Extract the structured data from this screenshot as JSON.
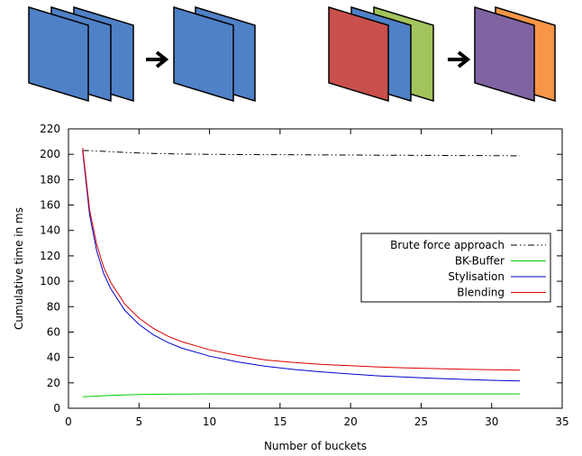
{
  "illustration": {
    "left_group_colors": [
      "#4f81c7",
      "#4f81c7",
      "#4f81c7"
    ],
    "left_result_colors": [
      "#4f81c7",
      "#4f81c7"
    ],
    "right_group_colors": [
      "#a3c45c",
      "#4f81c7",
      "#c9504c"
    ],
    "right_result_colors": [
      "#f79646",
      "#8064a2"
    ],
    "arrow_color": "#000000"
  },
  "chart_data": {
    "type": "line",
    "title": "",
    "xlabel": "Number of buckets",
    "ylabel": "Cumulative time in ms",
    "xlim": [
      0,
      35
    ],
    "ylim": [
      0,
      220
    ],
    "xticks": [
      0,
      5,
      10,
      15,
      20,
      25,
      30,
      35
    ],
    "yticks": [
      0,
      20,
      40,
      60,
      80,
      100,
      120,
      140,
      160,
      180,
      200,
      220
    ],
    "grid": false,
    "legend_position": "right",
    "x": [
      1,
      1.5,
      2,
      2.5,
      3,
      4,
      5,
      6,
      7,
      8,
      10,
      12,
      14,
      16,
      18,
      20,
      22,
      24,
      26,
      28,
      30,
      32
    ],
    "series": [
      {
        "name": "Brute force approach",
        "color": "#000000",
        "dash": "dash-dot-dot",
        "values": [
          203,
          202.8,
          202.5,
          202.3,
          202,
          201.5,
          201,
          200.7,
          200.4,
          200.2,
          200,
          199.8,
          199.7,
          199.6,
          199.5,
          199.4,
          199.3,
          199.2,
          199.1,
          199,
          198.9,
          198.8
        ]
      },
      {
        "name": "BK-Buffer",
        "color": "#00cc00",
        "dash": "solid",
        "values": [
          9,
          9.3,
          9.6,
          9.9,
          10.1,
          10.5,
          10.8,
          11,
          11.1,
          11.2,
          11.3,
          11.3,
          11.3,
          11.3,
          11.3,
          11.3,
          11.3,
          11.3,
          11.3,
          11.3,
          11.3,
          11.3
        ]
      },
      {
        "name": "Stylisation",
        "color": "#0000cc",
        "dash": "solid",
        "values": [
          203,
          152,
          124,
          106,
          94,
          77,
          66,
          58,
          52,
          47.5,
          41,
          36.5,
          33,
          30.5,
          28.5,
          27,
          25.5,
          24.5,
          23.5,
          22.7,
          22,
          21.5
        ]
      },
      {
        "name": "Blending",
        "color": "#dd0000",
        "dash": "solid",
        "values": [
          205,
          156,
          129,
          111,
          99,
          82,
          71,
          63,
          57,
          52.5,
          46,
          41.5,
          38,
          36,
          34.5,
          33.5,
          32.5,
          31.8,
          31.2,
          30.7,
          30.3,
          30
        ]
      }
    ]
  }
}
